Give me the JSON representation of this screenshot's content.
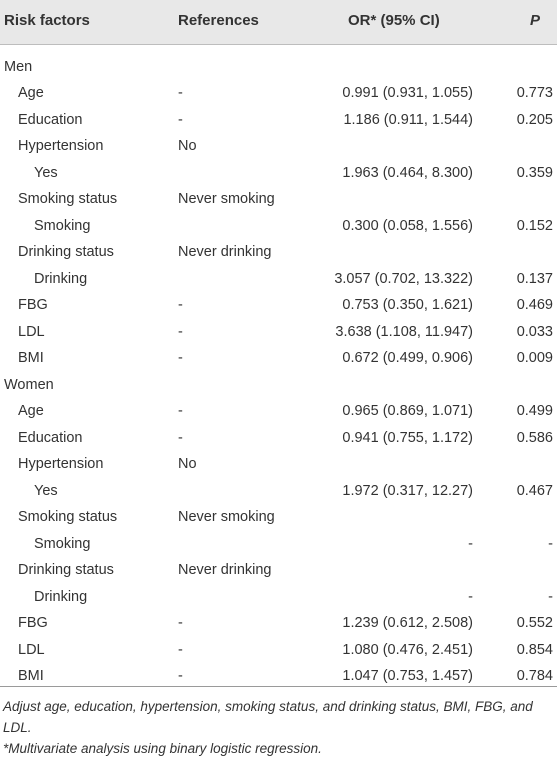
{
  "table": {
    "headers": {
      "factor": "Risk factors",
      "reference": "References",
      "or": "OR* (95% CI)",
      "p": "P"
    },
    "rows": [
      {
        "factor": "Men",
        "ref": "",
        "or": "",
        "p": "",
        "level": 0
      },
      {
        "factor": "Age",
        "ref": "-",
        "or": "0.991 (0.931, 1.055)",
        "p": "0.773",
        "level": 1
      },
      {
        "factor": "Education",
        "ref": "-",
        "or": "1.186 (0.911, 1.544)",
        "p": "0.205",
        "level": 1
      },
      {
        "factor": "Hypertension",
        "ref": "No",
        "or": "",
        "p": "",
        "level": 1
      },
      {
        "factor": "Yes",
        "ref": "",
        "or": "1.963 (0.464, 8.300)",
        "p": "0.359",
        "level": 2
      },
      {
        "factor": "Smoking status",
        "ref": "Never smoking",
        "or": "",
        "p": "",
        "level": 1
      },
      {
        "factor": "Smoking",
        "ref": "",
        "or": "0.300 (0.058, 1.556)",
        "p": "0.152",
        "level": 2
      },
      {
        "factor": "Drinking status",
        "ref": "Never drinking",
        "or": "",
        "p": "",
        "level": 1
      },
      {
        "factor": "Drinking",
        "ref": "",
        "or": "3.057 (0.702, 13.322)",
        "p": "0.137",
        "level": 2
      },
      {
        "factor": "FBG",
        "ref": "-",
        "or": "0.753 (0.350, 1.621)",
        "p": "0.469",
        "level": 1
      },
      {
        "factor": "LDL",
        "ref": "-",
        "or": "3.638 (1.108, 11.947)",
        "p": "0.033",
        "level": 1
      },
      {
        "factor": "BMI",
        "ref": "-",
        "or": "0.672 (0.499, 0.906)",
        "p": "0.009",
        "level": 1
      },
      {
        "factor": "Women",
        "ref": "",
        "or": "",
        "p": "",
        "level": 0
      },
      {
        "factor": "Age",
        "ref": "-",
        "or": "0.965 (0.869, 1.071)",
        "p": "0.499",
        "level": 1
      },
      {
        "factor": "Education",
        "ref": "-",
        "or": "0.941 (0.755, 1.172)",
        "p": "0.586",
        "level": 1
      },
      {
        "factor": "Hypertension",
        "ref": "No",
        "or": "",
        "p": "",
        "level": 1
      },
      {
        "factor": "Yes",
        "ref": "",
        "or": "1.972 (0.317, 12.27)",
        "p": "0.467",
        "level": 2
      },
      {
        "factor": "Smoking status",
        "ref": "Never smoking",
        "or": "",
        "p": "",
        "level": 1
      },
      {
        "factor": "Smoking",
        "ref": "",
        "or": "-",
        "p": "-",
        "level": 2
      },
      {
        "factor": "Drinking status",
        "ref": "Never drinking",
        "or": "",
        "p": "",
        "level": 1
      },
      {
        "factor": "Drinking",
        "ref": "",
        "or": "-",
        "p": "-",
        "level": 2
      },
      {
        "factor": "FBG",
        "ref": "-",
        "or": "1.239 (0.612, 2.508)",
        "p": "0.552",
        "level": 1
      },
      {
        "factor": "LDL",
        "ref": "-",
        "or": "1.080 (0.476, 2.451)",
        "p": "0.854",
        "level": 1
      },
      {
        "factor": "BMI",
        "ref": "-",
        "or": "1.047 (0.753, 1.457)",
        "p": "0.784",
        "level": 1
      }
    ]
  },
  "footnotes": [
    "Adjust age, education, hypertension, smoking status, and drinking status, BMI, FBG, and LDL.",
    "*Multivariate analysis using binary logistic regression."
  ]
}
